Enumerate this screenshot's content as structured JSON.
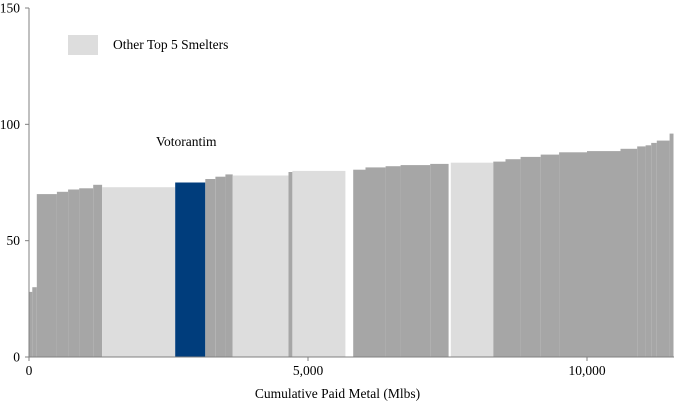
{
  "chart_data": {
    "type": "bar",
    "variant": "step-cost-curve",
    "title": "",
    "xlabel": "Cumulative Paid Metal (Mlbs)",
    "ylabel": "",
    "xlim": [
      0,
      11600
    ],
    "ylim": [
      0,
      150
    ],
    "grid": false,
    "y_ticks": [
      {
        "value": 0,
        "label": "0"
      },
      {
        "value": 50,
        "label": "50"
      },
      {
        "value": 100,
        "label": "100"
      },
      {
        "value": 150,
        "label": "150"
      }
    ],
    "x_ticks": [
      {
        "value": 0,
        "label": "0"
      },
      {
        "value": 5000,
        "label": "5,000"
      },
      {
        "value": 10000,
        "label": "10,000"
      }
    ],
    "legend": [
      {
        "label": "Other Top 5 Smelters",
        "group": "other_top5",
        "position": "top-left"
      }
    ],
    "annotations": [
      {
        "text": "Votorantim",
        "x": 2300,
        "y": 95,
        "group": "votorantim"
      }
    ],
    "colors": {
      "default": "#a6a6a6",
      "other_top5": "#dddddd",
      "votorantim": "#003d7c",
      "axis": "#808080",
      "text": "#000000"
    },
    "segments": [
      {
        "x0": 0,
        "x1": 60,
        "value": 28,
        "group": "default"
      },
      {
        "x0": 60,
        "x1": 140,
        "value": 30,
        "group": "default"
      },
      {
        "x0": 140,
        "x1": 500,
        "value": 70,
        "group": "default"
      },
      {
        "x0": 500,
        "x1": 700,
        "value": 71,
        "group": "default"
      },
      {
        "x0": 700,
        "x1": 900,
        "value": 72,
        "group": "default"
      },
      {
        "x0": 900,
        "x1": 1150,
        "value": 72.5,
        "group": "default"
      },
      {
        "x0": 1150,
        "x1": 1310,
        "value": 74,
        "group": "default"
      },
      {
        "x0": 1310,
        "x1": 2620,
        "value": 73,
        "group": "other_top5"
      },
      {
        "x0": 2620,
        "x1": 3160,
        "value": 75,
        "group": "votorantim"
      },
      {
        "x0": 3160,
        "x1": 3340,
        "value": 76.5,
        "group": "default"
      },
      {
        "x0": 3340,
        "x1": 3520,
        "value": 77.5,
        "group": "default"
      },
      {
        "x0": 3520,
        "x1": 3650,
        "value": 78.5,
        "group": "default"
      },
      {
        "x0": 3650,
        "x1": 4650,
        "value": 78,
        "group": "other_top5"
      },
      {
        "x0": 4650,
        "x1": 4720,
        "value": 79.5,
        "group": "default"
      },
      {
        "x0": 4720,
        "x1": 5670,
        "value": 80,
        "group": "other_top5"
      },
      {
        "x0": 5810,
        "x1": 6030,
        "value": 80.5,
        "group": "default"
      },
      {
        "x0": 6030,
        "x1": 6390,
        "value": 81.5,
        "group": "default"
      },
      {
        "x0": 6390,
        "x1": 6660,
        "value": 82,
        "group": "default"
      },
      {
        "x0": 6660,
        "x1": 7190,
        "value": 82.5,
        "group": "default"
      },
      {
        "x0": 7190,
        "x1": 7520,
        "value": 83,
        "group": "default"
      },
      {
        "x0": 7560,
        "x1": 8320,
        "value": 83.5,
        "group": "other_top5"
      },
      {
        "x0": 8320,
        "x1": 8540,
        "value": 84,
        "group": "default"
      },
      {
        "x0": 8540,
        "x1": 8810,
        "value": 85,
        "group": "default"
      },
      {
        "x0": 8810,
        "x1": 9170,
        "value": 86,
        "group": "default"
      },
      {
        "x0": 9170,
        "x1": 9500,
        "value": 87,
        "group": "default"
      },
      {
        "x0": 9500,
        "x1": 10000,
        "value": 88,
        "group": "default"
      },
      {
        "x0": 10000,
        "x1": 10600,
        "value": 88.5,
        "group": "default"
      },
      {
        "x0": 10600,
        "x1": 10900,
        "value": 89.5,
        "group": "default"
      },
      {
        "x0": 10900,
        "x1": 11050,
        "value": 90.5,
        "group": "default"
      },
      {
        "x0": 11050,
        "x1": 11150,
        "value": 91,
        "group": "default"
      },
      {
        "x0": 11150,
        "x1": 11250,
        "value": 92,
        "group": "default"
      },
      {
        "x0": 11250,
        "x1": 11480,
        "value": 93,
        "group": "default"
      },
      {
        "x0": 11480,
        "x1": 11550,
        "value": 96,
        "group": "default"
      }
    ]
  }
}
